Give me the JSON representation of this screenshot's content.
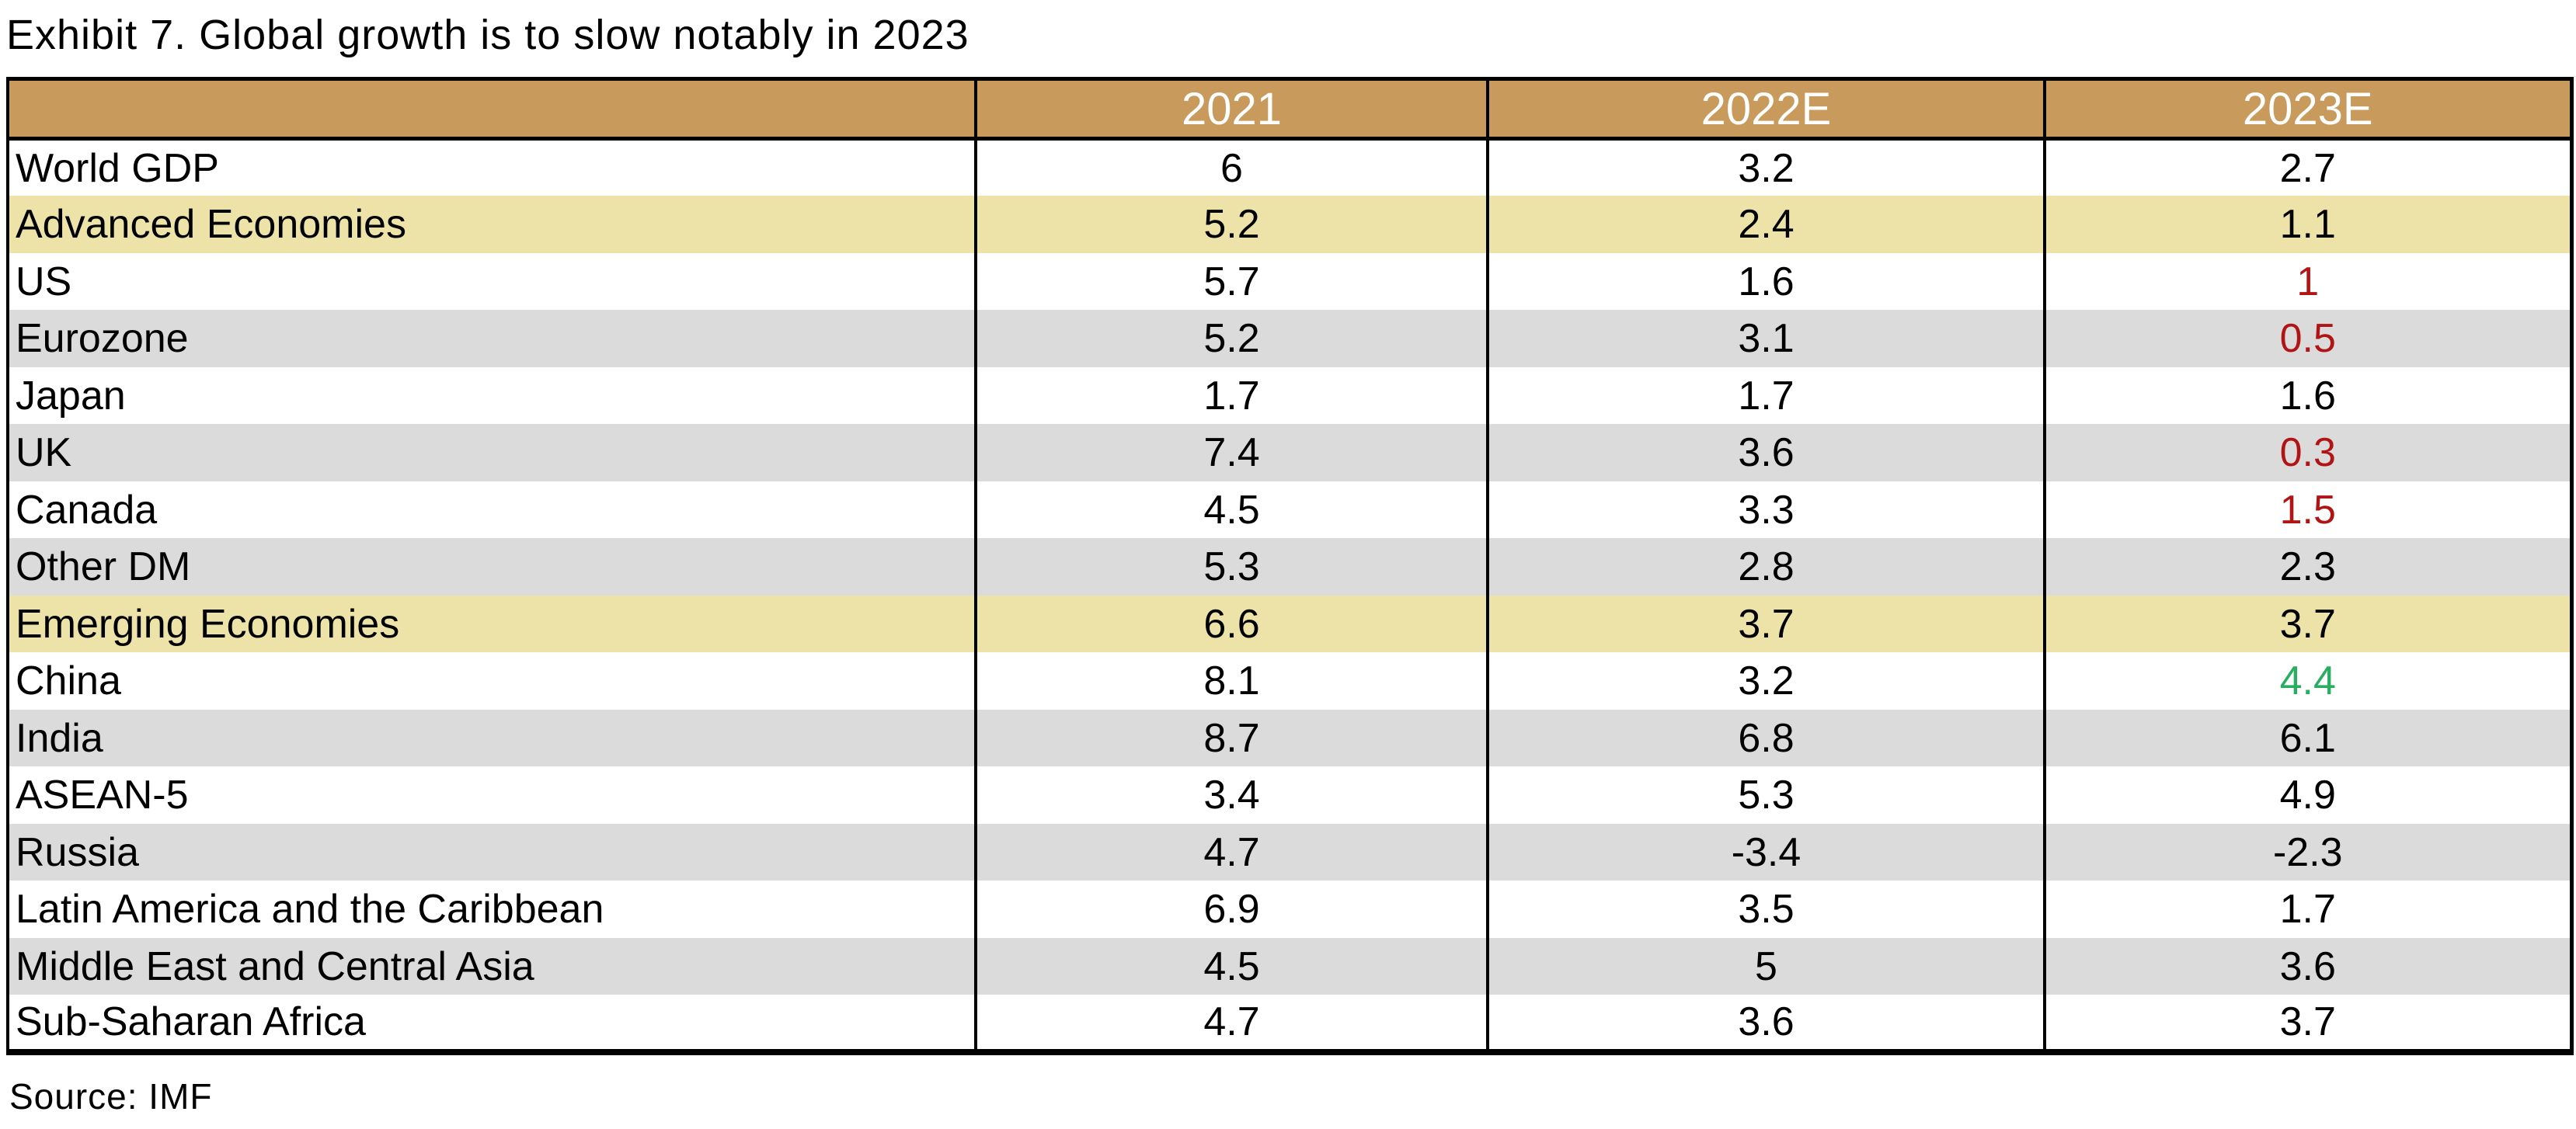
{
  "title": "Exhibit 7. Global growth is to slow notably in 2023",
  "source": "Source: IMF",
  "colors": {
    "header_bg": "#C89A5C",
    "header_text": "#FFFFFF",
    "highlight_row_bg": "#EDE3A8",
    "alt_row_bg": "#DBDBDB",
    "plain_row_bg": "#FFFFFF",
    "negative_text": "#B01414",
    "positive_text": "#27AE60",
    "border": "#000000"
  },
  "table": {
    "columns": [
      "",
      "2021",
      "2022E",
      "2023E"
    ],
    "rows": [
      {
        "label": "World GDP",
        "values": [
          "6",
          "3.2",
          "2.7"
        ],
        "style": "plain",
        "value_tones": [
          null,
          null,
          null
        ]
      },
      {
        "label": "Advanced Economies",
        "values": [
          "5.2",
          "2.4",
          "1.1"
        ],
        "style": "highlight",
        "value_tones": [
          null,
          null,
          null
        ]
      },
      {
        "label": "US",
        "values": [
          "5.7",
          "1.6",
          "1"
        ],
        "style": "plain",
        "value_tones": [
          null,
          null,
          "negative"
        ]
      },
      {
        "label": "Eurozone",
        "values": [
          "5.2",
          "3.1",
          "0.5"
        ],
        "style": "alt",
        "value_tones": [
          null,
          null,
          "negative"
        ]
      },
      {
        "label": "Japan",
        "values": [
          "1.7",
          "1.7",
          "1.6"
        ],
        "style": "plain",
        "value_tones": [
          null,
          null,
          null
        ]
      },
      {
        "label": "UK",
        "values": [
          "7.4",
          "3.6",
          "0.3"
        ],
        "style": "alt",
        "value_tones": [
          null,
          null,
          "negative"
        ]
      },
      {
        "label": "Canada",
        "values": [
          "4.5",
          "3.3",
          "1.5"
        ],
        "style": "plain",
        "value_tones": [
          null,
          null,
          "negative"
        ]
      },
      {
        "label": "Other DM",
        "values": [
          "5.3",
          "2.8",
          "2.3"
        ],
        "style": "alt",
        "value_tones": [
          null,
          null,
          null
        ]
      },
      {
        "label": "Emerging Economies",
        "values": [
          "6.6",
          "3.7",
          "3.7"
        ],
        "style": "highlight",
        "value_tones": [
          null,
          null,
          null
        ]
      },
      {
        "label": "China",
        "values": [
          "8.1",
          "3.2",
          "4.4"
        ],
        "style": "plain",
        "value_tones": [
          null,
          null,
          "positive"
        ]
      },
      {
        "label": "India",
        "values": [
          "8.7",
          "6.8",
          "6.1"
        ],
        "style": "alt",
        "value_tones": [
          null,
          null,
          null
        ]
      },
      {
        "label": "ASEAN-5",
        "values": [
          "3.4",
          "5.3",
          "4.9"
        ],
        "style": "plain",
        "value_tones": [
          null,
          null,
          null
        ]
      },
      {
        "label": "Russia",
        "values": [
          "4.7",
          "-3.4",
          "-2.3"
        ],
        "style": "alt",
        "value_tones": [
          null,
          null,
          null
        ]
      },
      {
        "label": "Latin America and the Caribbean",
        "values": [
          "6.9",
          "3.5",
          "1.7"
        ],
        "style": "plain",
        "value_tones": [
          null,
          null,
          null
        ]
      },
      {
        "label": "Middle East and Central Asia",
        "values": [
          "4.5",
          "5",
          "3.6"
        ],
        "style": "alt",
        "value_tones": [
          null,
          null,
          null
        ]
      },
      {
        "label": "Sub-Saharan Africa",
        "values": [
          "4.7",
          "3.6",
          "3.7"
        ],
        "style": "plain",
        "value_tones": [
          null,
          null,
          null
        ]
      }
    ]
  },
  "chart_data": {
    "type": "table",
    "title": "Exhibit 7. Global growth is to slow notably in 2023",
    "columns": [
      "2021",
      "2022E",
      "2023E"
    ],
    "rows": [
      {
        "label": "World GDP",
        "values": [
          6,
          3.2,
          2.7
        ]
      },
      {
        "label": "Advanced Economies",
        "values": [
          5.2,
          2.4,
          1.1
        ]
      },
      {
        "label": "US",
        "values": [
          5.7,
          1.6,
          1
        ]
      },
      {
        "label": "Eurozone",
        "values": [
          5.2,
          3.1,
          0.5
        ]
      },
      {
        "label": "Japan",
        "values": [
          1.7,
          1.7,
          1.6
        ]
      },
      {
        "label": "UK",
        "values": [
          7.4,
          3.6,
          0.3
        ]
      },
      {
        "label": "Canada",
        "values": [
          4.5,
          3.3,
          1.5
        ]
      },
      {
        "label": "Other DM",
        "values": [
          5.3,
          2.8,
          2.3
        ]
      },
      {
        "label": "Emerging Economies",
        "values": [
          6.6,
          3.7,
          3.7
        ]
      },
      {
        "label": "China",
        "values": [
          8.1,
          3.2,
          4.4
        ]
      },
      {
        "label": "India",
        "values": [
          8.7,
          6.8,
          6.1
        ]
      },
      {
        "label": "ASEAN-5",
        "values": [
          3.4,
          5.3,
          4.9
        ]
      },
      {
        "label": "Russia",
        "values": [
          4.7,
          -3.4,
          -2.3
        ]
      },
      {
        "label": "Latin America and the Caribbean",
        "values": [
          6.9,
          3.5,
          1.7
        ]
      },
      {
        "label": "Middle East and Central Asia",
        "values": [
          4.5,
          5,
          3.6
        ]
      },
      {
        "label": "Sub-Saharan Africa",
        "values": [
          4.7,
          3.6,
          3.7
        ]
      }
    ],
    "source": "Source: IMF"
  }
}
